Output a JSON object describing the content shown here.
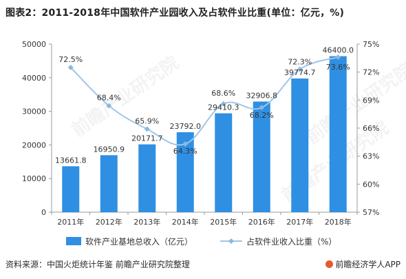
{
  "title": "图表2：2011-2018年中国软件产业园收入及占软件业比重(单位：亿元，%)",
  "footer": {
    "source": "资料来源：中国火炬统计年鉴  前瞻产业研究院整理",
    "brand": "前瞻经济学人APP"
  },
  "watermark": "前瞻产业研究院",
  "colors": {
    "bar": "#2f8fe3",
    "line": "#9ec6e8",
    "marker": "#8ab8e0",
    "axis": "#9a9a9a",
    "text": "#333333"
  },
  "chart_data": {
    "type": "bar",
    "categories": [
      "2011年",
      "2012年",
      "2013年",
      "2014年",
      "2015年",
      "2016年",
      "2017年",
      "2018年"
    ],
    "series": [
      {
        "name": "软件产业基地总收入（亿元）",
        "type": "bar",
        "axis": "left",
        "values": [
          13661.8,
          16950.9,
          20171.7,
          23792.0,
          29410.3,
          32906.8,
          39774.7,
          46400.0
        ],
        "labels": [
          "13661.8",
          "16950.9",
          "20171.7",
          "23792.0",
          "29410.3",
          "32906.8",
          "39774.7",
          "46400.0"
        ]
      },
      {
        "name": "占软件业收入比重（%）",
        "type": "line",
        "axis": "right",
        "values": [
          72.5,
          68.4,
          65.9,
          64.3,
          68.6,
          68.2,
          72.3,
          73.6
        ],
        "labels": [
          "72.5%",
          "68.4%",
          "65.9%",
          "64.3%",
          "68.6%",
          "68.2%",
          "72.3%",
          "73.6%"
        ]
      }
    ],
    "y_left": {
      "min": 0,
      "max": 50000,
      "ticks": [
        "0",
        "10000",
        "20000",
        "30000",
        "40000",
        "50000"
      ]
    },
    "y_right": {
      "min": 57,
      "max": 75,
      "ticks": [
        "57%",
        "60%",
        "63%",
        "66%",
        "69%",
        "72%",
        "75%"
      ]
    },
    "grid": false,
    "legend_position": "bottom"
  }
}
